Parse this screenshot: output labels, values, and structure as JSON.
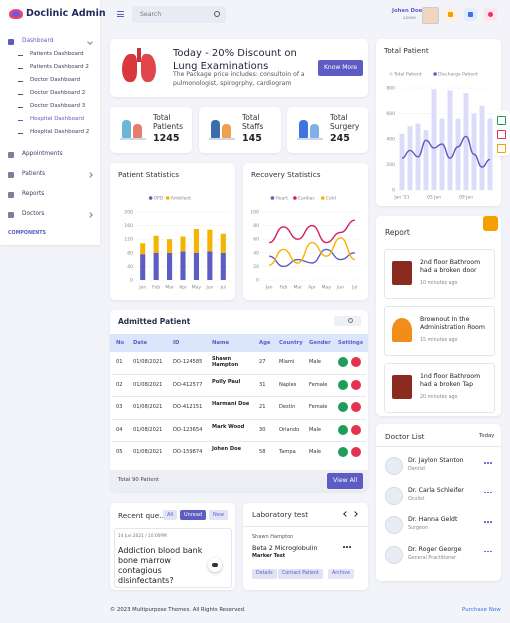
{
  "sidebar": {
    "logo": "Doclinic Admin",
    "menu": [
      {
        "label": "Dashboard",
        "active": true,
        "children": [
          {
            "label": "Patients Dashboard"
          },
          {
            "label": "Patients Dashboard 2"
          },
          {
            "label": "Doctor Dashboard"
          },
          {
            "label": "Doctor Dashboard 2"
          },
          {
            "label": "Doctor Dashboard 3"
          },
          {
            "label": "Hospital Dashboard",
            "active": true
          },
          {
            "label": "Hospital Dashboard 2"
          }
        ]
      },
      {
        "label": "Appointments"
      },
      {
        "label": "Patients",
        "has_submenu": true
      },
      {
        "label": "Reports"
      },
      {
        "label": "Doctors",
        "has_submenu": true
      }
    ],
    "section": "COMPONENTS"
  },
  "topbar": {
    "search": "Search",
    "user_name": "Johen Doe",
    "user_role": "ADMIN"
  },
  "banner": {
    "title": "Today - 20% Discount on Lung Examinations",
    "text": "The Package price includes: consultoin of a pulmonologist, spirogrphy, cardiogram",
    "button": "Know More"
  },
  "stats": [
    {
      "label": "Total Patients",
      "value": 1245
    },
    {
      "label": "Total Staffs",
      "value": 145
    },
    {
      "label": "Total Surgery",
      "value": 245
    }
  ],
  "patient_statistics": {
    "type": "bar",
    "stacked": true,
    "title": "Patient Statistics",
    "categories": [
      "Jan",
      "Feb",
      "Mar",
      "Apr",
      "May",
      "Jun",
      "Jul"
    ],
    "series": [
      {
        "name": "OPD",
        "color": "#5c5cc4",
        "values": [
          76,
          80,
          80,
          84,
          80,
          84,
          80
        ]
      },
      {
        "name": "Ambilent",
        "color": "#f5b400",
        "values": [
          32,
          50,
          40,
          44,
          70,
          64,
          56
        ]
      }
    ],
    "ylim": [
      0,
      200
    ],
    "yticks": [
      0,
      40,
      80,
      120,
      160,
      200
    ],
    "grid": true
  },
  "recovery_statistics": {
    "type": "line",
    "title": "Recovery Statistics",
    "categories": [
      "Jan",
      "Feb",
      "Mar",
      "Apr",
      "May",
      "Jun",
      "Jul"
    ],
    "series": [
      {
        "name": "Heart",
        "color": "#5c5cc4",
        "values": [
          35,
          20,
          30,
          25,
          45,
          30,
          40
        ]
      },
      {
        "name": "Cardiac",
        "color": "#d81b60",
        "values": [
          55,
          78,
          60,
          80,
          55,
          70,
          88
        ]
      },
      {
        "name": "Cold",
        "color": "#f5b400",
        "values": [
          22,
          45,
          25,
          55,
          35,
          62,
          30
        ]
      }
    ],
    "ylim": [
      0,
      100
    ],
    "yticks": [
      0,
      20,
      40,
      60,
      80,
      100
    ],
    "grid": true
  },
  "admitted_patient": {
    "title": "Admitted Patient",
    "columns": [
      "No",
      "Date",
      "ID",
      "Name",
      "Age",
      "Country",
      "Gender",
      "Settings"
    ],
    "rows": [
      [
        "01",
        "01/08/2021",
        "DO-124585",
        "Shawn Hampton",
        27,
        "Miami",
        "Male"
      ],
      [
        "02",
        "01/08/2021",
        "DO-412577",
        "Polly Paul",
        31,
        "Naples",
        "Female"
      ],
      [
        "03",
        "01/08/2021",
        "DO-412151",
        "Harmani Doe",
        21,
        "Destin",
        "Female"
      ],
      [
        "04",
        "01/08/2021",
        "DO-123654",
        "Mark Wood",
        30,
        "Orlando",
        "Male"
      ],
      [
        "05",
        "01/08/2021",
        "DO-159874",
        "Johen Doe",
        58,
        "Tampa",
        "Male"
      ]
    ],
    "total": "Total 90 Patient",
    "button": "View All"
  },
  "recent_questions": {
    "title": "Recent que...",
    "tabs": [
      "All",
      "Unread",
      "New"
    ],
    "date": "14 Jun 2021  /  10:00PM",
    "question": "Addiction blood bank bone marrow contagious disinfectants?"
  },
  "laboratory_test": {
    "title": "Laboratory test",
    "patient": "Shawn Hampton",
    "test": "Beta 2 Microglobulin",
    "kind": "Marker Test",
    "buttons": [
      "Details",
      "Contact Patient",
      "Archive"
    ]
  },
  "total_patient": {
    "type": "bar",
    "title": "Total Patient",
    "categories": [
      "Jan '21",
      null,
      null,
      null,
      "05 Jan",
      null,
      null,
      null,
      "09 Jan",
      null,
      null,
      null
    ],
    "series": [
      {
        "name": "Total Patient",
        "type": "bar",
        "color": "#dcdcf8",
        "values": [
          440,
          500,
          520,
          470,
          790,
          560,
          780,
          560,
          760,
          600,
          660,
          560
        ]
      },
      {
        "name": "Discharge Patient",
        "type": "line",
        "color": "#5c5cc4",
        "values": [
          250,
          310,
          260,
          390,
          330,
          360,
          250,
          340,
          420,
          280,
          180,
          240
        ]
      }
    ],
    "ylim": [
      0,
      800
    ],
    "yticks": [
      0,
      200,
      400,
      600,
      800
    ],
    "grid": true
  },
  "report": {
    "title": "Report",
    "items": [
      {
        "text": "2nd floor Bathroom had a broken door",
        "time": "10 minutes ago"
      },
      {
        "text": "Brownout In the Administration Room",
        "time": "15 minutes ago"
      },
      {
        "text": "1nd floor Bathroom had a broken Tap",
        "time": "20 minutes ago"
      }
    ]
  },
  "doctor_list": {
    "title": "Doctor List",
    "filter": "Today",
    "doctors": [
      {
        "name": "Dr. Jaylon Stanton",
        "specialty": "Dentist"
      },
      {
        "name": "Dr. Carla Schleifer",
        "specialty": "Oculist"
      },
      {
        "name": "Dr. Hanna Geldt",
        "specialty": "Surgeon"
      },
      {
        "name": "Dr. Roger George",
        "specialty": "General Practitioner"
      }
    ]
  },
  "footer": {
    "copyright": "© 2023 Multipurpose Themes. All Rights Reserved.",
    "link": "Purchase Now"
  }
}
